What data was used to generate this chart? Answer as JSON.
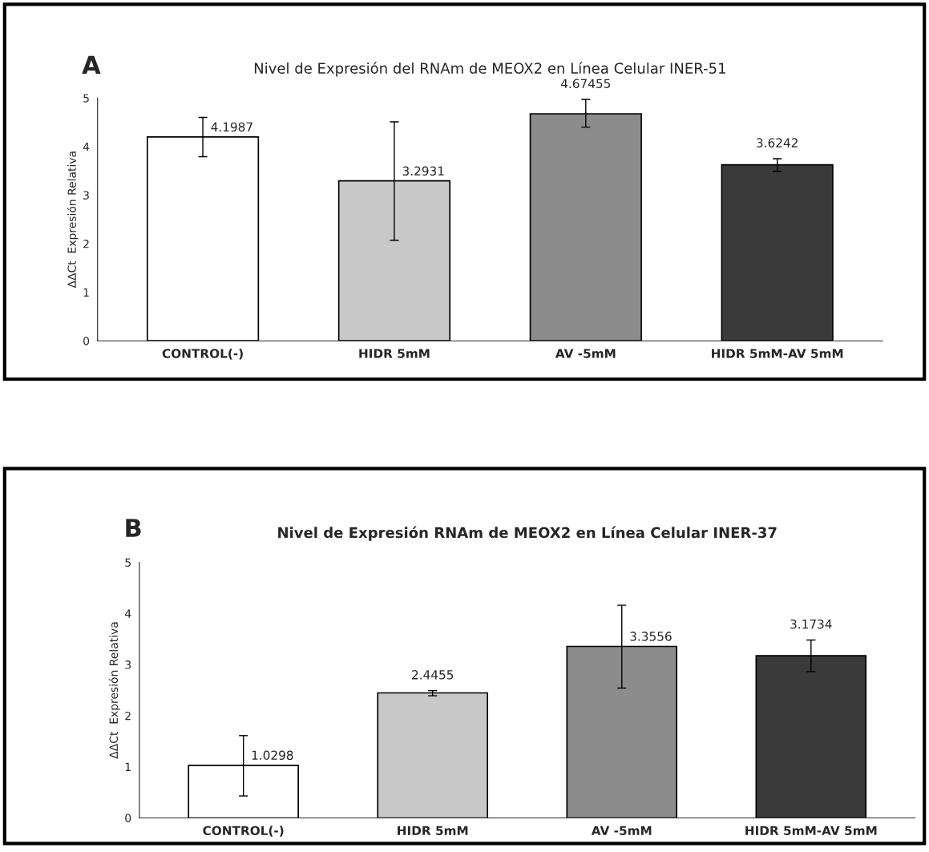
{
  "chart_data": [
    {
      "type": "bar",
      "title": "Nivel de Expresión del RNAm de MEOX2 en Línea Celular INER-51",
      "ylabel": "ΔΔCt  Expresión Relativa",
      "annotations": [
        "A"
      ],
      "categories": [
        "CONTROL(-)",
        "HIDR 5mM",
        "AV -5mM",
        "HIDR 5mM-AV 5mM"
      ],
      "values": [
        4.1987,
        3.2931,
        4.67455,
        3.6242
      ],
      "colors": [
        "#ffffff",
        "#c8c8c8",
        "#8c8c8c",
        "#3a3a3a"
      ],
      "errors": [
        [
          3.79,
          4.6
        ],
        [
          2.07,
          4.51
        ],
        [
          4.4,
          4.97
        ],
        [
          3.49,
          3.75
        ]
      ],
      "data_labels": true,
      "ylim": [
        0,
        5
      ],
      "yticks": [
        0,
        1,
        2,
        3,
        4,
        5
      ],
      "grid": false,
      "legend": false
    },
    {
      "type": "bar",
      "title": "Nivel de Expresión RNAm de MEOX2 en Línea Celular INER-37",
      "ylabel": "ΔΔCt  Expresión Relativa",
      "annotations": [
        "B"
      ],
      "categories": [
        "CONTROL(-)",
        "HIDR 5mM",
        "AV -5mM",
        "HIDR 5mM-AV 5mM"
      ],
      "values": [
        1.0298,
        2.4455,
        3.3556,
        3.1734
      ],
      "colors": [
        "#ffffff",
        "#c8c8c8",
        "#8c8c8c",
        "#3a3a3a"
      ],
      "errors": [
        [
          0.43,
          1.61
        ],
        [
          2.39,
          2.49
        ],
        [
          2.54,
          4.16
        ],
        [
          2.86,
          3.48
        ]
      ],
      "data_labels": true,
      "ylim": [
        0,
        5
      ],
      "yticks": [
        0,
        1,
        2,
        3,
        4,
        5
      ],
      "grid": false,
      "legend": false
    }
  ]
}
